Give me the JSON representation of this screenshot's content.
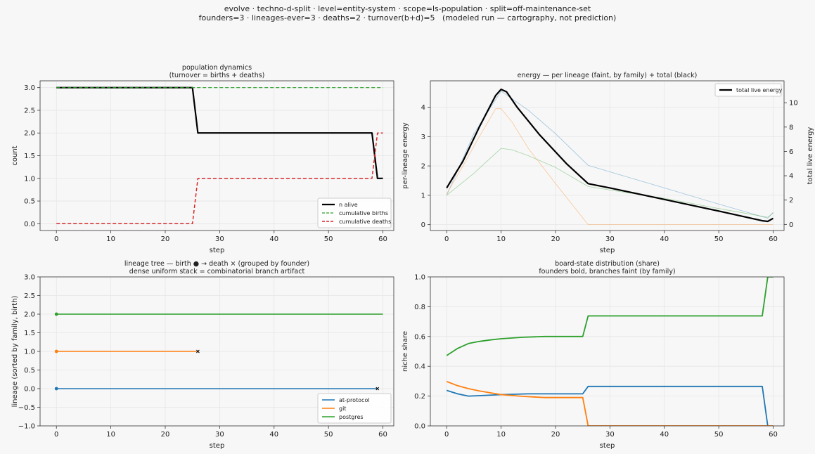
{
  "suptitle": {
    "line1": "evolve · techno-d-split · level=entity-system · scope=ls-population · split=off-maintenance-set",
    "line2": "founders=3 · lineages-ever=3 · deaths=2 · turnover(b+d)=5   (modeled run — cartography, not prediction)"
  },
  "colors": {
    "at-protocol": "#1f77b4",
    "git": "#ff7f0e",
    "postgres": "#2ca02c",
    "deaths": "#d62728",
    "alive": "#000000",
    "background": "#f7f7f7",
    "grid": "#e6e6e6"
  },
  "chart_data": [
    {
      "id": "population",
      "type": "line",
      "title": [
        "population dynamics",
        "(turnover = births + deaths)"
      ],
      "xlabel": "step",
      "ylabel": "count",
      "xlim": [
        -3,
        62
      ],
      "ylim": [
        -0.15,
        3.15
      ],
      "xticks": [
        0,
        10,
        20,
        30,
        40,
        50,
        60
      ],
      "yticks": [
        0.0,
        0.5,
        1.0,
        1.5,
        2.0,
        2.5,
        3.0
      ],
      "ytick_labels": [
        "0.0",
        "0.5",
        "1.0",
        "1.5",
        "2.0",
        "2.5",
        "3.0"
      ],
      "grid": true,
      "legend": "lower right",
      "series": [
        {
          "name": "n alive",
          "color": "#000000",
          "style": "solid",
          "width": 2.2,
          "x": [
            0,
            25,
            26,
            58,
            59,
            60
          ],
          "y": [
            3,
            3,
            2,
            2,
            1,
            1
          ]
        },
        {
          "name": "cumulative births",
          "color": "#2ca02c",
          "style": "dashed",
          "width": 1.2,
          "x": [
            0,
            60
          ],
          "y": [
            3,
            3
          ]
        },
        {
          "name": "cumulative deaths",
          "color": "#d62728",
          "style": "dashed",
          "width": 1.5,
          "x": [
            0,
            25,
            26,
            58,
            59,
            60
          ],
          "y": [
            0,
            0,
            1,
            1,
            2,
            2
          ]
        }
      ]
    },
    {
      "id": "energy",
      "type": "line",
      "title": [
        "energy — per lineage (faint, by family) + total (black)"
      ],
      "xlabel": "step",
      "ylabel": "per-lineage energy",
      "y2label": "total live energy",
      "xlim": [
        -3,
        62
      ],
      "ylim": [
        -0.2,
        4.9
      ],
      "y2lim": [
        -0.5,
        11.8
      ],
      "xticks": [
        0,
        10,
        20,
        30,
        40,
        50,
        60
      ],
      "yticks": [
        0,
        1,
        2,
        3,
        4
      ],
      "ytick_labels": [
        "0",
        "1",
        "2",
        "3",
        "4"
      ],
      "y2ticks": [
        0,
        2,
        4,
        6,
        8,
        10
      ],
      "y2tick_labels": [
        "0",
        "2",
        "4",
        "6",
        "8",
        "10"
      ],
      "grid": true,
      "legend": "upper right",
      "series": [
        {
          "name": "at-protocol",
          "axis": "left",
          "color": "#1f77b4",
          "faint": true,
          "x": [
            0,
            5,
            10,
            15,
            20,
            26,
            30,
            40,
            50,
            59,
            60
          ],
          "y": [
            1.0,
            3.1,
            4.55,
            3.9,
            3.1,
            2.02,
            1.8,
            1.25,
            0.7,
            0.22,
            0.42
          ]
        },
        {
          "name": "git",
          "axis": "left",
          "color": "#ff7f0e",
          "faint": true,
          "x": [
            0,
            3,
            6,
            9,
            10,
            12,
            15,
            20,
            26,
            30,
            40,
            50,
            60
          ],
          "y": [
            1.05,
            2.0,
            3.0,
            3.95,
            3.95,
            3.5,
            2.6,
            1.4,
            0.0,
            0.0,
            0.0,
            0.0,
            0.0
          ]
        },
        {
          "name": "postgres",
          "axis": "left",
          "color": "#2ca02c",
          "faint": true,
          "x": [
            0,
            5,
            10,
            12,
            15,
            20,
            26,
            30,
            40,
            50,
            59,
            60
          ],
          "y": [
            1.0,
            1.75,
            2.6,
            2.55,
            2.35,
            1.95,
            1.3,
            1.18,
            0.9,
            0.55,
            0.25,
            0.4
          ]
        },
        {
          "name": "total live energy",
          "axis": "right",
          "color": "#000000",
          "width": 2.2,
          "x": [
            0,
            3,
            6,
            9,
            10,
            11,
            13,
            17,
            22,
            26,
            30,
            40,
            50,
            58,
            59,
            60
          ],
          "y": [
            3.0,
            5.2,
            8.0,
            10.6,
            11.1,
            10.9,
            9.6,
            7.4,
            5.0,
            3.35,
            3.0,
            2.05,
            1.1,
            0.3,
            0.25,
            0.5
          ],
          "legend": true
        }
      ]
    },
    {
      "id": "lineage-tree",
      "type": "line",
      "title": [
        "lineage tree — birth ● → death ×  (grouped by founder)",
        "dense uniform stack = combinatorial branch artifact"
      ],
      "xlabel": "step",
      "ylabel": "lineage (sorted by family, birth)",
      "xlim": [
        -3,
        62
      ],
      "ylim": [
        -1.0,
        3.0
      ],
      "xticks": [
        0,
        10,
        20,
        30,
        40,
        50,
        60
      ],
      "yticks": [
        -1.0,
        -0.5,
        0.0,
        0.5,
        1.0,
        1.5,
        2.0,
        2.5,
        3.0
      ],
      "ytick_labels": [
        "−1.0",
        "−0.5",
        "0.0",
        "0.5",
        "1.0",
        "1.5",
        "2.0",
        "2.5",
        "3.0"
      ],
      "grid": true,
      "legend": "lower right",
      "series": [
        {
          "name": "at-protocol",
          "color": "#1f77b4",
          "lineage": 0,
          "birth": 0,
          "end": 59,
          "died": true
        },
        {
          "name": "git",
          "color": "#ff7f0e",
          "lineage": 1,
          "birth": 0,
          "end": 26,
          "died": true
        },
        {
          "name": "postgres",
          "color": "#2ca02c",
          "lineage": 2,
          "birth": 0,
          "end": 60,
          "died": false
        }
      ]
    },
    {
      "id": "board-state",
      "type": "line",
      "title": [
        "board-state distribution (share)",
        "founders bold, branches faint (by family)"
      ],
      "xlabel": "step",
      "ylabel": "niche share",
      "xlim": [
        -3,
        62
      ],
      "ylim": [
        0.0,
        1.0
      ],
      "xticks": [
        0,
        10,
        20,
        30,
        40,
        50,
        60
      ],
      "yticks": [
        0.0,
        0.2,
        0.4,
        0.6,
        0.8,
        1.0
      ],
      "ytick_labels": [
        "0.0",
        "0.2",
        "0.4",
        "0.6",
        "0.8",
        "1.0"
      ],
      "grid": true,
      "series": [
        {
          "name": "at-protocol",
          "color": "#1f77b4",
          "x": [
            0,
            2,
            4,
            6,
            10,
            15,
            20,
            25,
            26,
            30,
            40,
            50,
            58,
            59
          ],
          "y": [
            0.238,
            0.215,
            0.2,
            0.203,
            0.21,
            0.215,
            0.215,
            0.215,
            0.265,
            0.265,
            0.265,
            0.265,
            0.265,
            0.0
          ]
        },
        {
          "name": "git",
          "color": "#ff7f0e",
          "x": [
            0,
            2,
            4,
            6,
            8,
            10,
            14,
            18,
            22,
            25,
            26,
            30,
            40,
            50,
            60
          ],
          "y": [
            0.298,
            0.27,
            0.25,
            0.235,
            0.222,
            0.21,
            0.198,
            0.19,
            0.19,
            0.19,
            0.0,
            0.0,
            0.0,
            0.0,
            0.0
          ]
        },
        {
          "name": "postgres",
          "color": "#2ca02c",
          "x": [
            0,
            2,
            4,
            6,
            8,
            10,
            14,
            18,
            22,
            25,
            26,
            30,
            40,
            50,
            58,
            59,
            60
          ],
          "y": [
            0.472,
            0.52,
            0.553,
            0.567,
            0.577,
            0.585,
            0.595,
            0.6,
            0.6,
            0.6,
            0.738,
            0.738,
            0.738,
            0.738,
            0.738,
            1.0,
            1.0
          ]
        }
      ]
    }
  ]
}
